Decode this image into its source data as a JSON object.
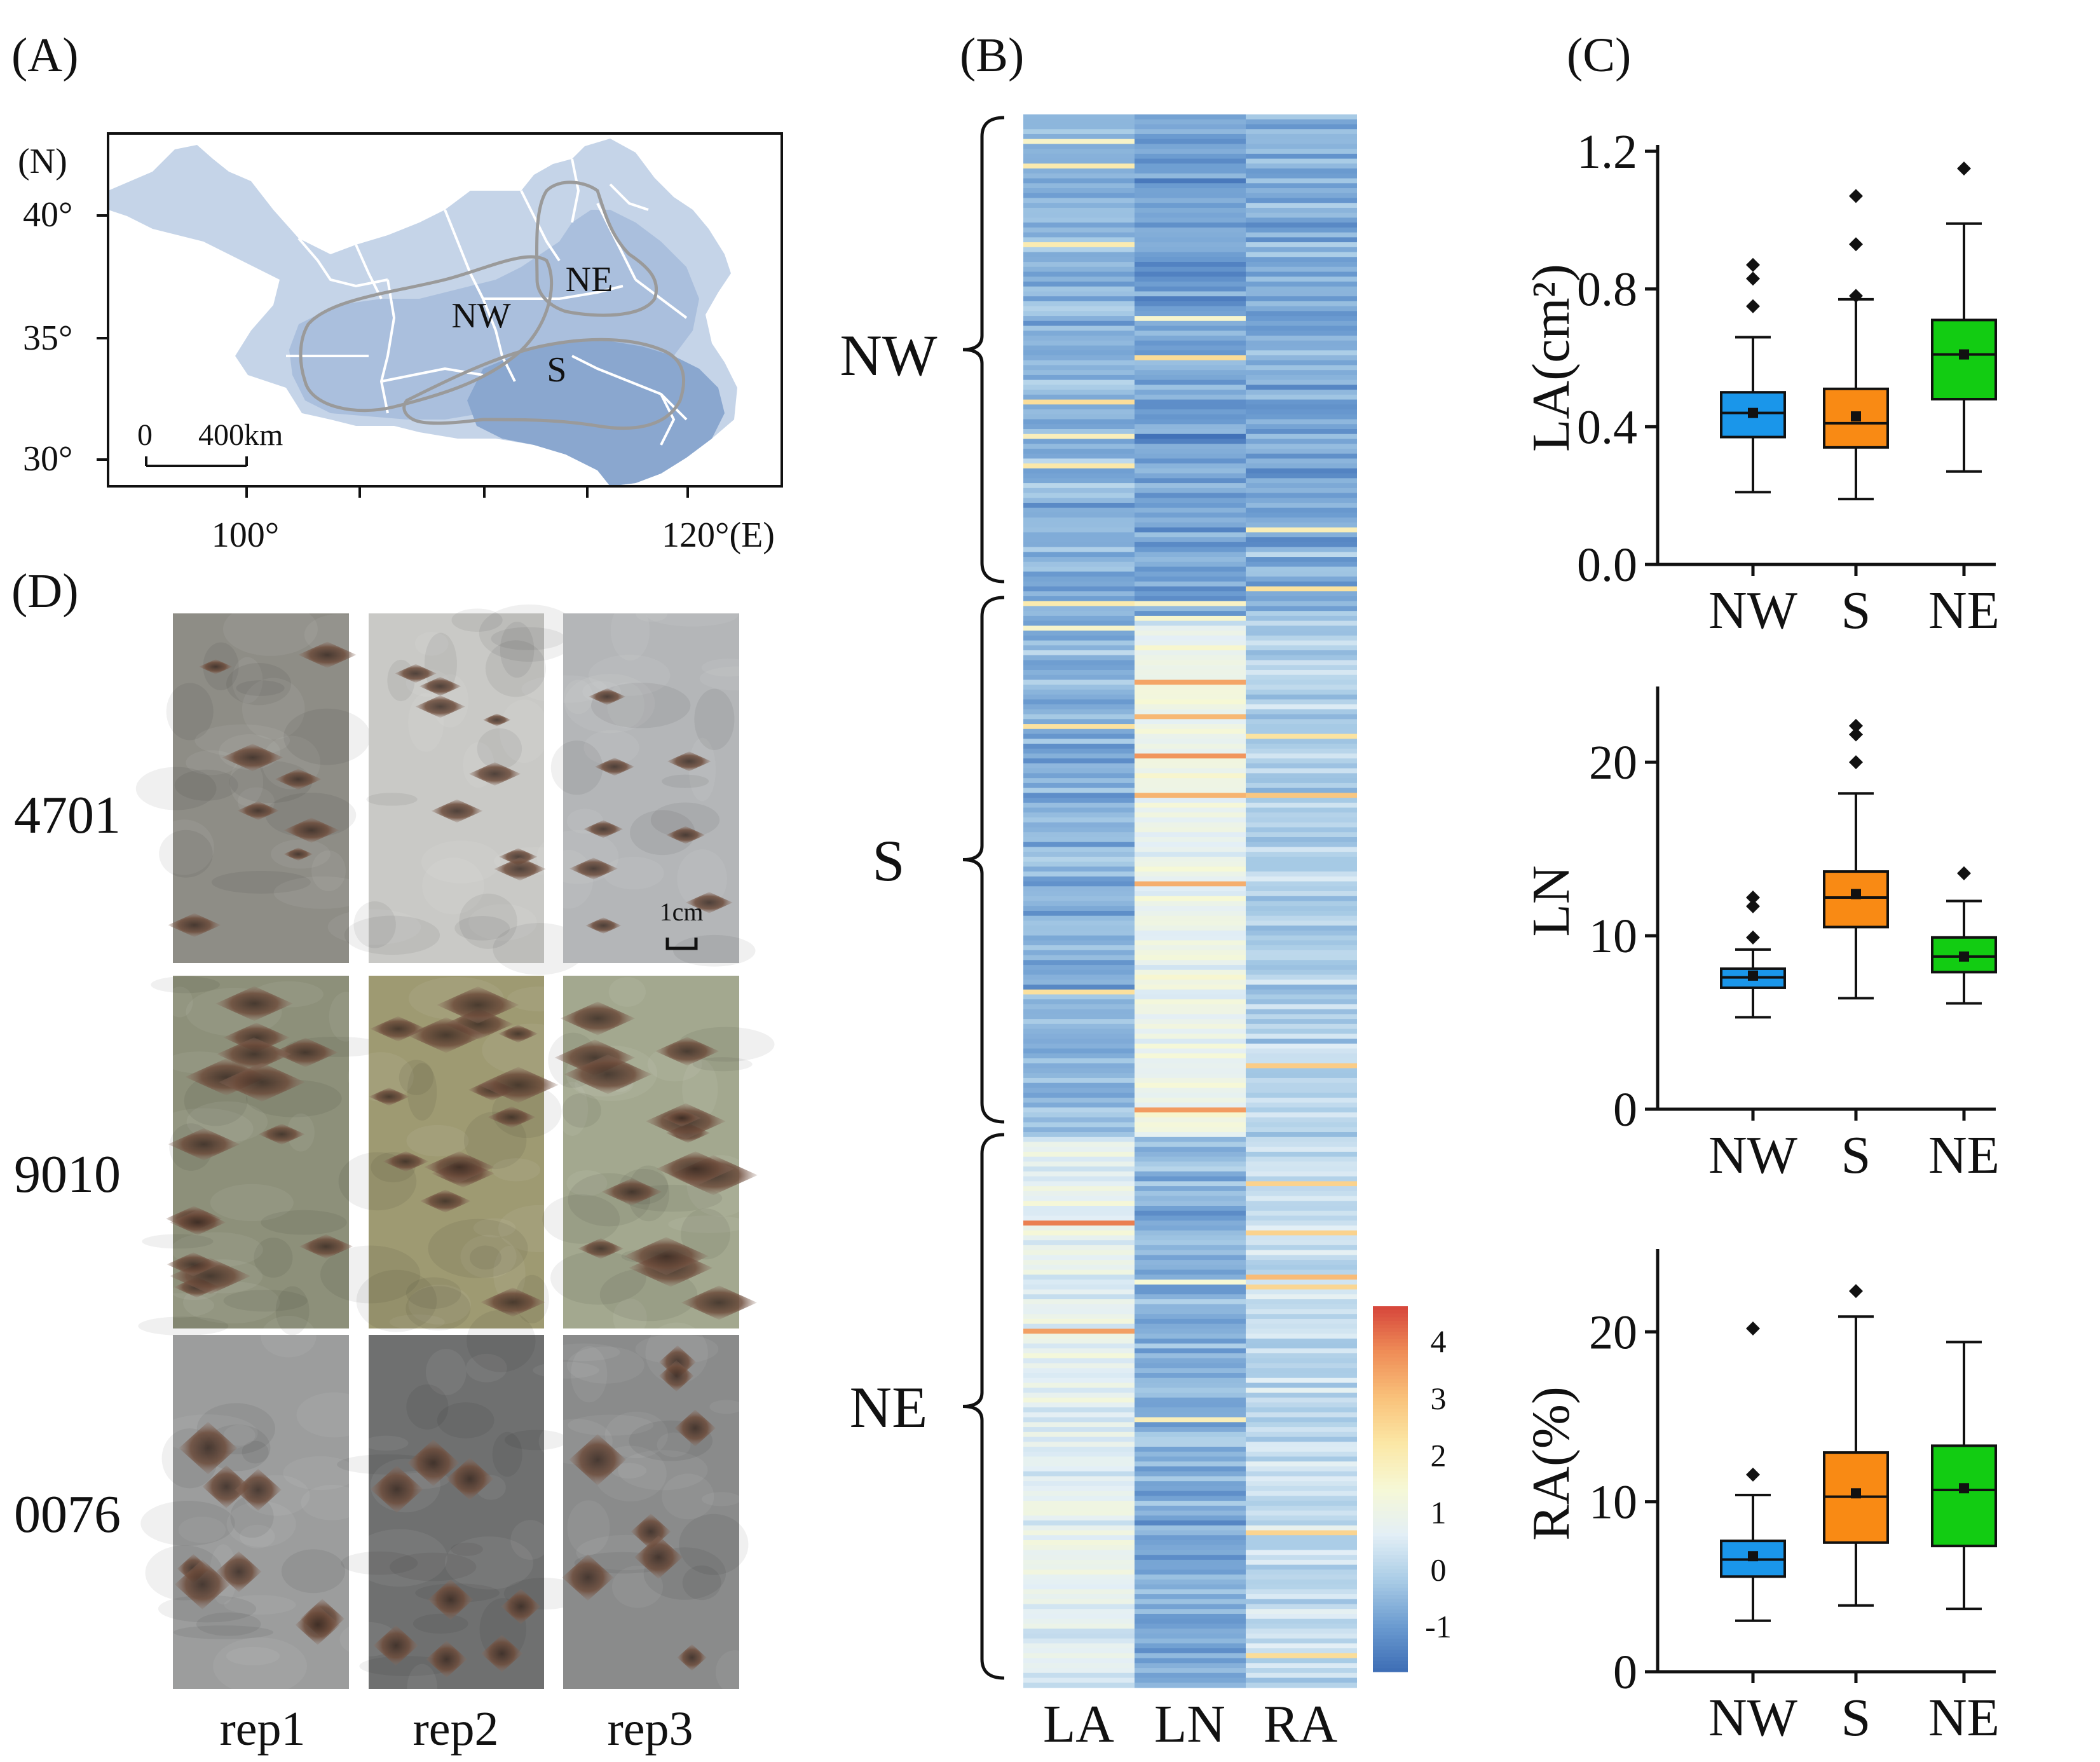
{
  "panels": {
    "a": "(A)",
    "b": "(B)",
    "c": "(C)",
    "d": "(D)"
  },
  "map": {
    "lat_unit": "(N)",
    "lat_ticks": [
      "40°",
      "35°",
      "30°"
    ],
    "lon_ticks": [
      "100°",
      "120°(E)"
    ],
    "regions": [
      "NW",
      "NE",
      "S"
    ],
    "scale_zero": "0",
    "scale_label": "400km",
    "colors": {
      "base": "#c5d4e8",
      "mid": "#aabfdd",
      "dark": "#8aa7cf",
      "outline": "#9a9a9a"
    }
  },
  "heatmap": {
    "columns": [
      "LA",
      "LN",
      "RA"
    ],
    "groups": [
      "NW",
      "S",
      "NE"
    ],
    "colorbar_ticks": [
      "4",
      "3",
      "2",
      "1",
      "0",
      "-1"
    ],
    "colorbar_range": [
      -1.8,
      4.6
    ],
    "colors": [
      "#3d6db5",
      "#6b9bd0",
      "#a9cce6",
      "#e3eff6",
      "#f6f8d6",
      "#fbe7a5",
      "#f9c17a",
      "#ef8d57",
      "#d6453b"
    ]
  },
  "chart_data": [
    {
      "type": "box",
      "ylabel": "LA(cm²)",
      "categories": [
        "NW",
        "S",
        "NE"
      ],
      "yticks": [
        "0.0",
        "0.4",
        "0.8",
        "1.2"
      ],
      "ylim": [
        0,
        1.2
      ],
      "colors": [
        "#1a96ea",
        "#f98a14",
        "#12cc12"
      ],
      "boxes": [
        {
          "whisker_low": 0.21,
          "q1": 0.37,
          "median": 0.44,
          "q3": 0.5,
          "whisker_high": 0.66,
          "mean": 0.44,
          "outliers": [
            0.75,
            0.83,
            0.87
          ]
        },
        {
          "whisker_low": 0.19,
          "q1": 0.34,
          "median": 0.41,
          "q3": 0.51,
          "whisker_high": 0.77,
          "mean": 0.43,
          "outliers": [
            0.78,
            0.93,
            1.07
          ]
        },
        {
          "whisker_low": 0.27,
          "q1": 0.48,
          "median": 0.61,
          "q3": 0.71,
          "whisker_high": 0.99,
          "mean": 0.61,
          "outliers": [
            1.15
          ]
        }
      ]
    },
    {
      "type": "box",
      "ylabel": "LN",
      "categories": [
        "NW",
        "S",
        "NE"
      ],
      "yticks": [
        "0",
        "10",
        "20"
      ],
      "ylim": [
        0,
        24
      ],
      "colors": [
        "#1a96ea",
        "#f98a14",
        "#12cc12"
      ],
      "boxes": [
        {
          "whisker_low": 5.3,
          "q1": 7.0,
          "median": 7.6,
          "q3": 8.1,
          "whisker_high": 9.2,
          "mean": 7.7,
          "outliers": [
            9.9,
            11.7,
            12.2
          ]
        },
        {
          "whisker_low": 6.4,
          "q1": 10.5,
          "median": 12.2,
          "q3": 13.7,
          "whisker_high": 18.2,
          "mean": 12.4,
          "outliers": [
            20.0,
            21.6,
            22.1
          ]
        },
        {
          "whisker_low": 6.1,
          "q1": 7.9,
          "median": 8.8,
          "q3": 9.9,
          "whisker_high": 12.0,
          "mean": 8.8,
          "outliers": [
            13.6
          ]
        }
      ]
    },
    {
      "type": "box",
      "ylabel": "RA(%)",
      "categories": [
        "NW",
        "S",
        "NE"
      ],
      "yticks": [
        "0",
        "10",
        "20"
      ],
      "ylim": [
        0,
        24.5
      ],
      "colors": [
        "#1a96ea",
        "#f98a14",
        "#12cc12"
      ],
      "boxes": [
        {
          "whisker_low": 3.0,
          "q1": 5.6,
          "median": 6.6,
          "q3": 7.7,
          "whisker_high": 10.4,
          "mean": 6.8,
          "outliers": [
            11.6,
            20.2
          ]
        },
        {
          "whisker_low": 3.9,
          "q1": 7.6,
          "median": 10.3,
          "q3": 12.9,
          "whisker_high": 20.9,
          "mean": 10.5,
          "outliers": [
            22.4
          ]
        },
        {
          "whisker_low": 3.7,
          "q1": 7.4,
          "median": 10.7,
          "q3": 13.3,
          "whisker_high": 19.4,
          "mean": 10.8,
          "outliers": []
        }
      ]
    }
  ],
  "photos": {
    "rows": [
      "4701",
      "9010",
      "0076"
    ],
    "cols": [
      "rep1",
      "rep2",
      "rep3"
    ],
    "scale_label": "1cm"
  }
}
